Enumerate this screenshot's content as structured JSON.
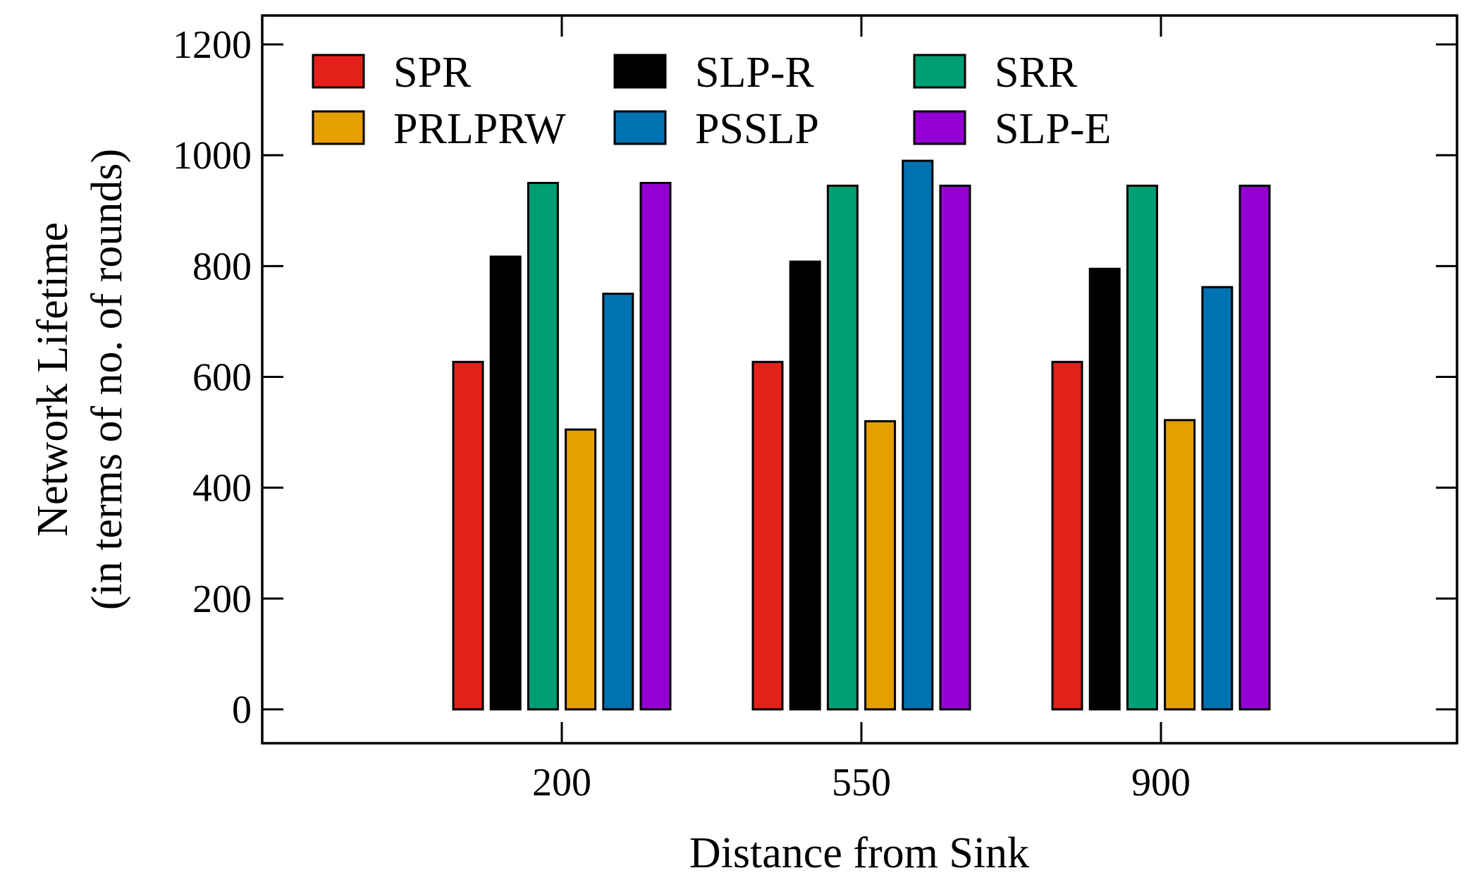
{
  "chart_data": {
    "type": "bar",
    "title": "",
    "xlabel": "Distance from Sink",
    "ylabel_line1": "Network Lifetime",
    "ylabel_line2": "(in terms of no. of rounds)",
    "categories": [
      "200",
      "550",
      "900"
    ],
    "yticks": [
      "0",
      "200",
      "400",
      "600",
      "800",
      "1000",
      "1200"
    ],
    "ylim": [
      -60,
      1250
    ],
    "grid": false,
    "legend_position": "top",
    "series": [
      {
        "name": "SPR",
        "color": "#e3211a",
        "values": [
          627,
          627,
          627
        ]
      },
      {
        "name": "SLP-R",
        "color": "#000000",
        "values": [
          817,
          808,
          795
        ]
      },
      {
        "name": "SRR",
        "color": "#009e73",
        "values": [
          950,
          945,
          945
        ]
      },
      {
        "name": "PRLPRW",
        "color": "#e69f00",
        "values": [
          505,
          520,
          522
        ]
      },
      {
        "name": "PSSLP",
        "color": "#0072b2",
        "values": [
          750,
          990,
          762
        ]
      },
      {
        "name": "SLP-E",
        "color": "#9400d3",
        "values": [
          950,
          945,
          945
        ]
      }
    ]
  }
}
